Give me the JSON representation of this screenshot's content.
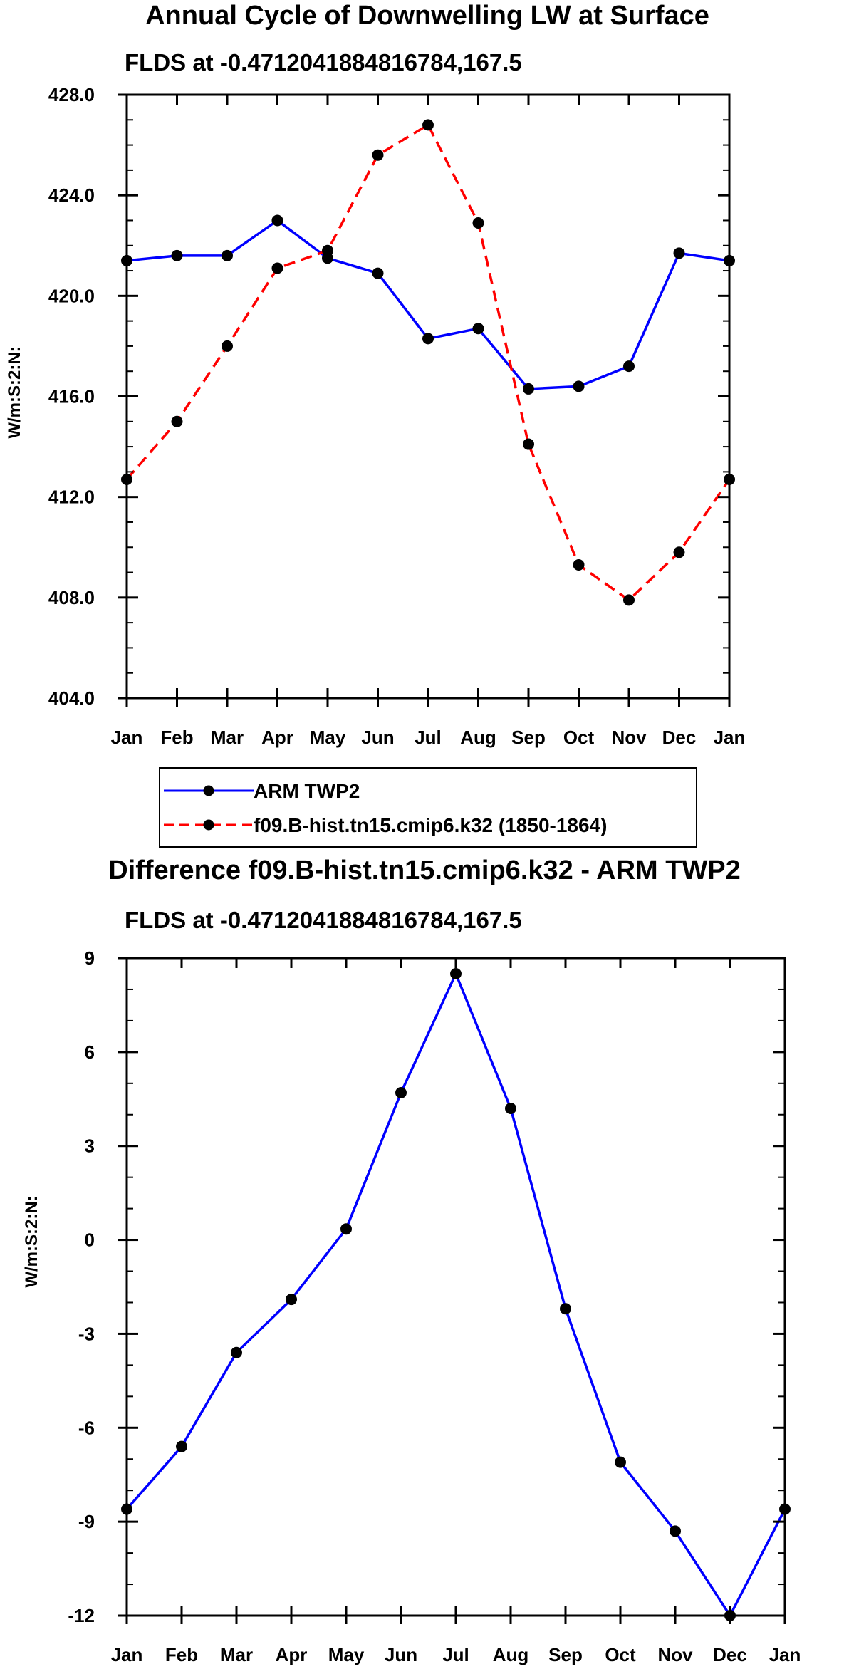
{
  "chart_data": [
    {
      "type": "line",
      "title": "Annual Cycle of Downwelling LW at Surface",
      "subtitle": "FLDS at -0.4712041884816784,167.5",
      "ylabel": "W/m:S:2:N:",
      "xlabel": "",
      "categories": [
        "Jan",
        "Feb",
        "Mar",
        "Apr",
        "May",
        "Jun",
        "Jul",
        "Aug",
        "Sep",
        "Oct",
        "Nov",
        "Dec",
        "Jan"
      ],
      "ylim": [
        404.0,
        428.0
      ],
      "yticks": [
        "404.0",
        "408.0",
        "412.0",
        "416.0",
        "420.0",
        "424.0",
        "428.0"
      ],
      "series": [
        {
          "name": "ARM TWP2",
          "color": "#0000ff",
          "style": "solid",
          "values": [
            421.4,
            421.6,
            421.6,
            423.0,
            421.5,
            420.9,
            418.3,
            418.7,
            416.3,
            416.4,
            417.2,
            421.7,
            421.4
          ]
        },
        {
          "name": "f09.B-hist.tn15.cmip6.k32 (1850-1864)",
          "color": "#ff0000",
          "style": "dashed",
          "values": [
            412.7,
            415.0,
            418.0,
            421.1,
            421.8,
            425.6,
            426.8,
            422.9,
            414.1,
            409.3,
            407.9,
            409.8,
            412.7
          ]
        }
      ],
      "legend": "below plot"
    },
    {
      "type": "line",
      "title": "Difference f09.B-hist.tn15.cmip6.k32 - ARM TWP2",
      "subtitle": "FLDS at -0.4712041884816784,167.5",
      "ylabel": "W/m:S:2:N:",
      "xlabel": "",
      "categories": [
        "Jan",
        "Feb",
        "Mar",
        "Apr",
        "May",
        "Jun",
        "Jul",
        "Aug",
        "Sep",
        "Oct",
        "Nov",
        "Dec",
        "Jan"
      ],
      "ylim": [
        -12,
        9
      ],
      "yticks": [
        "-12",
        "-9",
        "-6",
        "-3",
        "0",
        "3",
        "6",
        "9"
      ],
      "series": [
        {
          "name": "Difference",
          "color": "#0000ff",
          "style": "solid",
          "values": [
            -8.6,
            -6.6,
            -3.6,
            -1.9,
            0.35,
            4.7,
            8.5,
            4.2,
            -2.2,
            -7.1,
            -9.3,
            -12.0,
            -8.6
          ]
        }
      ]
    }
  ]
}
